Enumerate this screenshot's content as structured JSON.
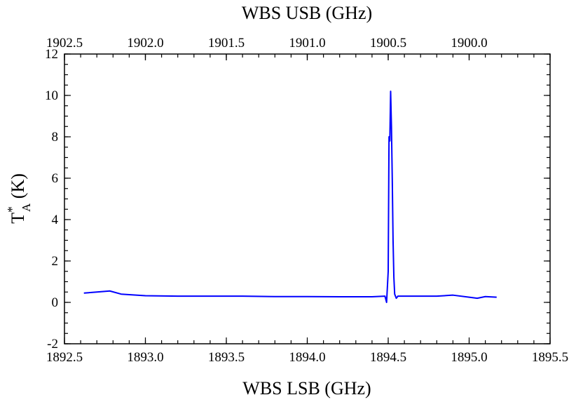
{
  "chart_data": {
    "type": "line",
    "top_xlabel": "WBS USB (GHz)",
    "xlabel": "WBS LSB (GHz)",
    "ylabel_main": "T",
    "ylabel_sup": "*",
    "ylabel_sub": "A",
    "ylabel_unit": " (K)",
    "xlim": [
      1892.5,
      1895.5
    ],
    "ylim": [
      -2,
      12
    ],
    "top_xlim": [
      1902.5,
      1899.5
    ],
    "x_ticks": [
      "1892.5",
      "1893.0",
      "1893.5",
      "1894.0",
      "1894.5",
      "1895.0",
      "1895.5"
    ],
    "top_ticks": [
      "1902.5",
      "1902.0",
      "1901.5",
      "1901.0",
      "1900.5",
      "1900.0"
    ],
    "y_ticks": [
      "-2",
      "0",
      "2",
      "4",
      "6",
      "8",
      "10",
      "12"
    ],
    "series": [
      {
        "color": "#0000ff",
        "x": [
          1892.62,
          1892.7,
          1892.78,
          1892.85,
          1893.0,
          1893.2,
          1893.4,
          1893.6,
          1893.8,
          1894.0,
          1894.2,
          1894.4,
          1894.48,
          1894.49,
          1894.5,
          1894.505,
          1894.51,
          1894.515,
          1894.52,
          1894.525,
          1894.53,
          1894.535,
          1894.54,
          1894.55,
          1894.56,
          1894.6,
          1894.8,
          1894.9,
          1895.0,
          1895.05,
          1895.1,
          1895.17
        ],
        "y": [
          0.45,
          0.5,
          0.55,
          0.4,
          0.32,
          0.3,
          0.3,
          0.3,
          0.28,
          0.28,
          0.27,
          0.27,
          0.3,
          0.0,
          1.5,
          8.0,
          7.8,
          10.2,
          8.5,
          6.0,
          3.0,
          1.2,
          0.4,
          0.2,
          0.3,
          0.3,
          0.3,
          0.35,
          0.25,
          0.2,
          0.28,
          0.25
        ]
      }
    ]
  }
}
